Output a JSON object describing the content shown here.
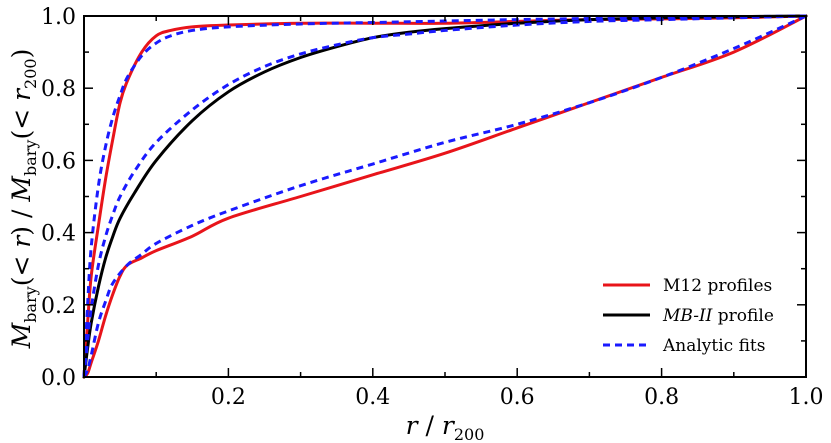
{
  "chart_data": {
    "type": "line",
    "xlabel": "r / r200",
    "ylabel": "M_bary(< r) / M_bary(< r200)",
    "xlim": [
      0.0,
      1.0
    ],
    "ylim": [
      0.0,
      1.0
    ],
    "xticks": [
      "0.2",
      "0.4",
      "0.6",
      "0.8",
      "1.0"
    ],
    "yticks": [
      "0.0",
      "0.2",
      "0.4",
      "0.6",
      "0.8",
      "1.0"
    ],
    "grid": false,
    "legend_position": "bottom-right",
    "legend": [
      {
        "label": "M12 profiles",
        "color": "#e8141a",
        "dash": "solid"
      },
      {
        "label": "MB-II profile",
        "color": "#000000",
        "dash": "solid",
        "italic_part": "MB-II",
        "rest": " profile"
      },
      {
        "label": "Analytic fits",
        "color": "#1a1aff",
        "dash": "dashed"
      }
    ],
    "series": [
      {
        "legend_group": "M12 profiles",
        "color": "#e8141a",
        "dash": "solid",
        "x": [
          0.0,
          0.005,
          0.01,
          0.02,
          0.03,
          0.04,
          0.05,
          0.06,
          0.08,
          0.1,
          0.12,
          0.15,
          0.2,
          0.3,
          0.4,
          0.5,
          0.6,
          0.7,
          0.8,
          0.9,
          1.0
        ],
        "y": [
          0.0,
          0.15,
          0.28,
          0.42,
          0.55,
          0.66,
          0.76,
          0.82,
          0.9,
          0.945,
          0.96,
          0.97,
          0.975,
          0.98,
          0.98,
          0.98,
          0.985,
          0.99,
          0.992,
          0.995,
          1.0
        ]
      },
      {
        "legend_group": "M12 profiles",
        "color": "#e8141a",
        "dash": "solid",
        "x": [
          0.0,
          0.005,
          0.01,
          0.02,
          0.03,
          0.04,
          0.05,
          0.06,
          0.08,
          0.1,
          0.15,
          0.2,
          0.3,
          0.4,
          0.5,
          0.6,
          0.7,
          0.8,
          0.9,
          1.0
        ],
        "y": [
          0.0,
          0.01,
          0.04,
          0.1,
          0.17,
          0.23,
          0.28,
          0.31,
          0.33,
          0.35,
          0.39,
          0.44,
          0.5,
          0.56,
          0.62,
          0.69,
          0.76,
          0.83,
          0.9,
          1.0
        ]
      },
      {
        "legend_group": "MB-II profile",
        "color": "#000000",
        "dash": "solid",
        "x": [
          0.0,
          0.005,
          0.01,
          0.02,
          0.03,
          0.04,
          0.05,
          0.07,
          0.1,
          0.15,
          0.2,
          0.25,
          0.3,
          0.35,
          0.4,
          0.45,
          0.5,
          0.6,
          0.7,
          0.8,
          0.9,
          1.0
        ],
        "y": [
          0.0,
          0.08,
          0.15,
          0.25,
          0.33,
          0.39,
          0.44,
          0.51,
          0.6,
          0.71,
          0.79,
          0.845,
          0.885,
          0.915,
          0.94,
          0.955,
          0.965,
          0.98,
          0.99,
          0.995,
          0.998,
          1.0
        ]
      },
      {
        "legend_group": "Analytic fits",
        "color": "#1a1aff",
        "dash": "dashed",
        "x": [
          0.0,
          0.005,
          0.01,
          0.02,
          0.03,
          0.04,
          0.05,
          0.06,
          0.08,
          0.1,
          0.12,
          0.15,
          0.2,
          0.3,
          0.4,
          0.5,
          0.6,
          0.7,
          0.8,
          0.9,
          1.0
        ],
        "y": [
          0.0,
          0.2,
          0.36,
          0.53,
          0.64,
          0.72,
          0.78,
          0.83,
          0.89,
          0.925,
          0.945,
          0.96,
          0.97,
          0.978,
          0.982,
          0.986,
          0.99,
          0.993,
          0.996,
          0.998,
          1.0
        ]
      },
      {
        "legend_group": "Analytic fits",
        "color": "#1a1aff",
        "dash": "dashed",
        "x": [
          0.0,
          0.005,
          0.01,
          0.02,
          0.03,
          0.04,
          0.05,
          0.07,
          0.1,
          0.15,
          0.2,
          0.25,
          0.3,
          0.35,
          0.4,
          0.45,
          0.5,
          0.6,
          0.7,
          0.8,
          0.9,
          1.0
        ],
        "y": [
          0.0,
          0.1,
          0.19,
          0.31,
          0.39,
          0.45,
          0.5,
          0.57,
          0.65,
          0.74,
          0.81,
          0.86,
          0.895,
          0.92,
          0.94,
          0.95,
          0.96,
          0.975,
          0.985,
          0.99,
          0.995,
          1.0
        ]
      },
      {
        "legend_group": "Analytic fits",
        "color": "#1a1aff",
        "dash": "dashed",
        "x": [
          0.0,
          0.005,
          0.01,
          0.02,
          0.03,
          0.04,
          0.06,
          0.08,
          0.1,
          0.15,
          0.2,
          0.3,
          0.4,
          0.5,
          0.6,
          0.7,
          0.8,
          0.9,
          1.0
        ],
        "y": [
          0.0,
          0.02,
          0.06,
          0.15,
          0.21,
          0.26,
          0.31,
          0.34,
          0.37,
          0.42,
          0.46,
          0.53,
          0.59,
          0.65,
          0.7,
          0.76,
          0.83,
          0.91,
          1.0
        ]
      }
    ]
  }
}
